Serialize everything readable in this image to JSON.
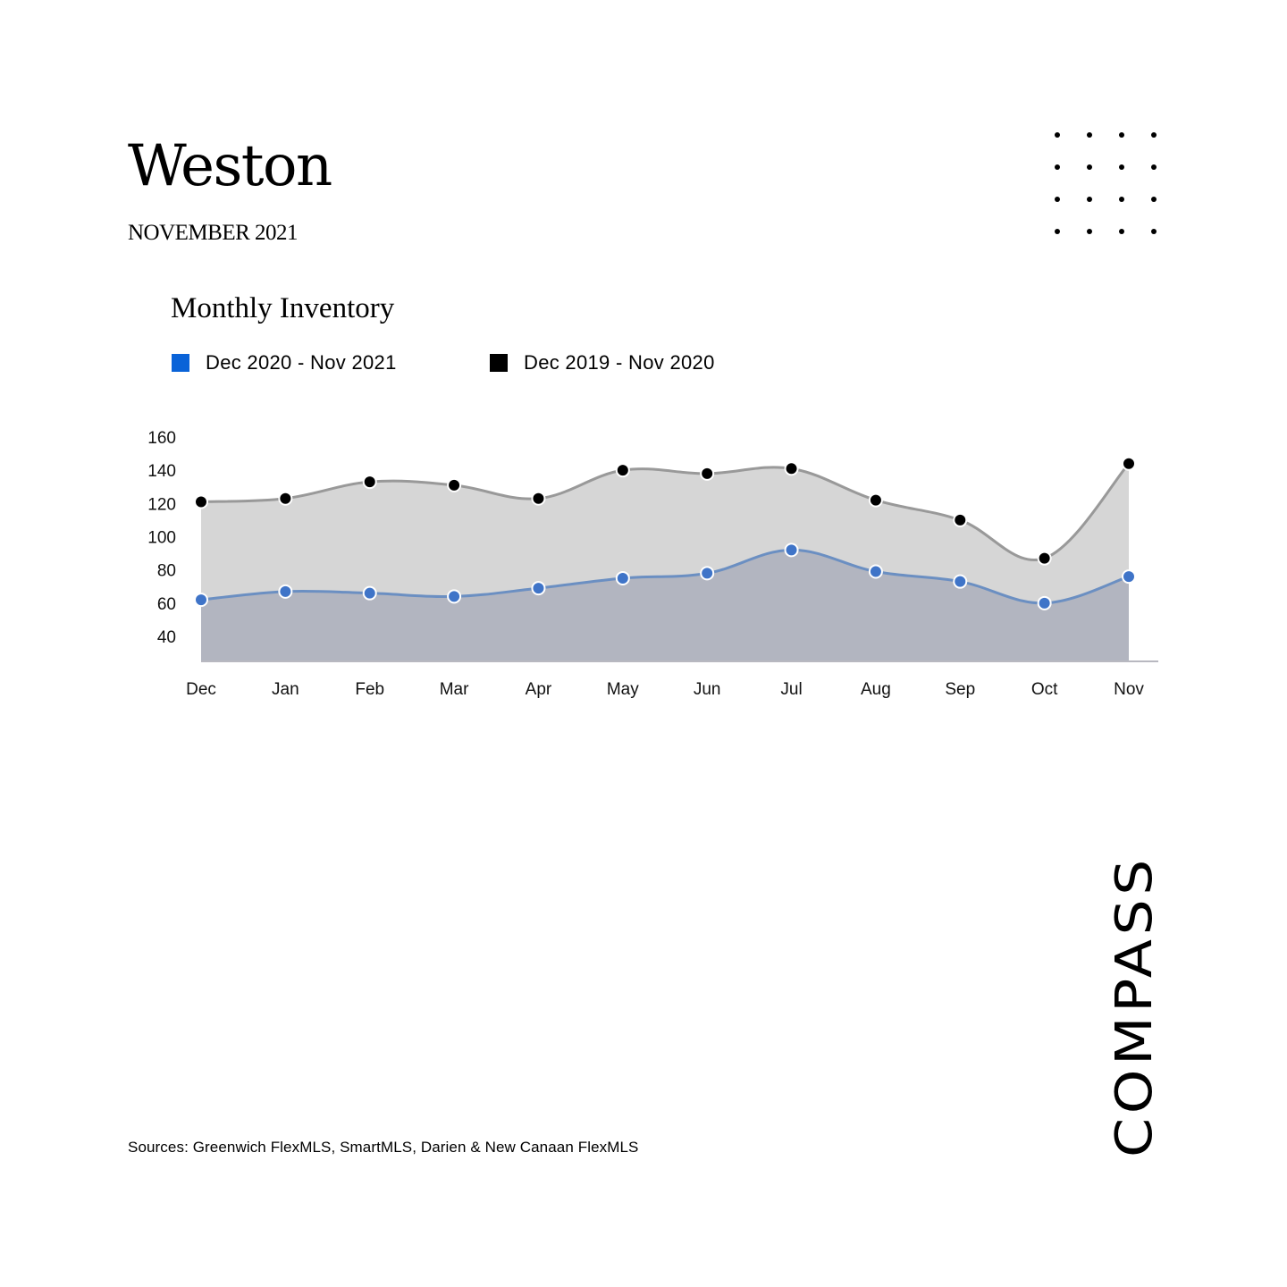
{
  "header": {
    "title": "Weston",
    "subtitle": "NOVEMBER 2021"
  },
  "decoration": {
    "dot_grid": {
      "rows": 4,
      "cols": 4,
      "color": "#000000"
    }
  },
  "chart": {
    "title": "Monthly Inventory",
    "legend": [
      {
        "label": "Dec 2020 - Nov 2021",
        "color": "#0a63d8"
      },
      {
        "label": "Dec 2019 - Nov 2020",
        "color": "#000000"
      }
    ]
  },
  "chart_data": {
    "type": "area",
    "title": "Monthly Inventory",
    "xlabel": "",
    "ylabel": "",
    "categories": [
      "Dec",
      "Jan",
      "Feb",
      "Mar",
      "Apr",
      "May",
      "Jun",
      "Jul",
      "Aug",
      "Sep",
      "Oct",
      "Nov"
    ],
    "yticks": [
      40,
      60,
      80,
      100,
      120,
      140,
      160
    ],
    "ylim": [
      25,
      160
    ],
    "grid": false,
    "legend_position": "top-left",
    "series": [
      {
        "name": "Dec 2020 - Nov 2021",
        "values": [
          62,
          67,
          66,
          64,
          69,
          75,
          78,
          92,
          79,
          73,
          60,
          76
        ],
        "line_color": "#6b8fc2",
        "point_color": "#3f74c8",
        "fill_color": "#b2b5c0"
      },
      {
        "name": "Dec 2019 - Nov 2020",
        "values": [
          121,
          123,
          133,
          131,
          123,
          140,
          138,
          141,
          122,
          110,
          87,
          144
        ],
        "line_color": "#999999",
        "point_color": "#000000",
        "fill_color": "#d6d6d6"
      }
    ]
  },
  "footer": {
    "sources": "Sources: Greenwich FlexMLS, SmartMLS, Darien & New Canaan FlexMLS",
    "logo_text": "COMPASS"
  }
}
